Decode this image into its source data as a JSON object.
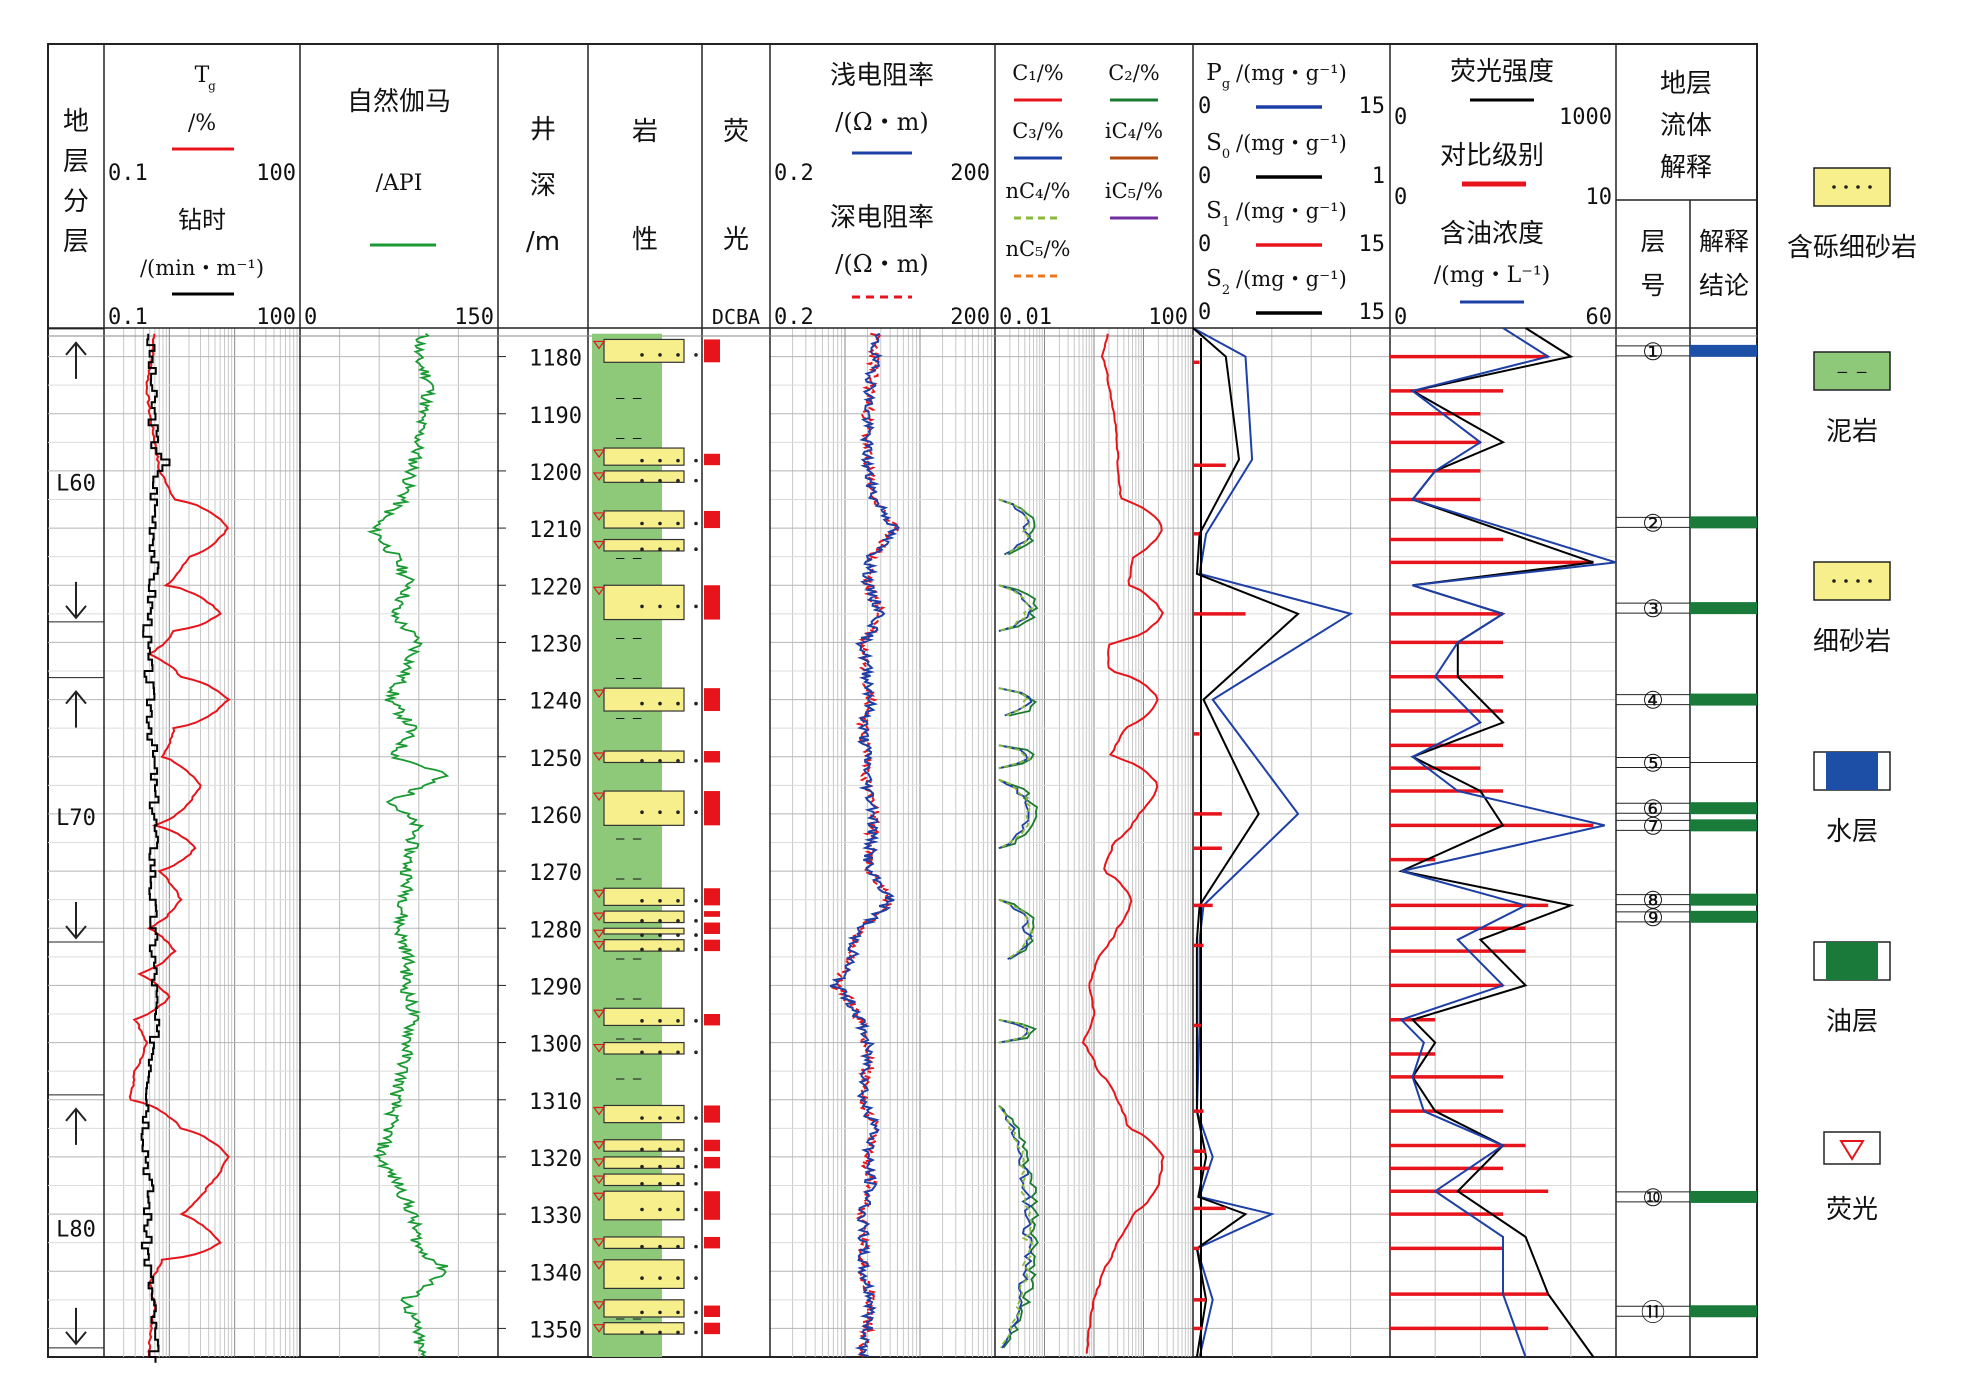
{
  "chart_data": {
    "type": "line",
    "depth_axis": {
      "label": "井深/m",
      "range": [
        1175,
        1355
      ],
      "ticks": [
        1180,
        1190,
        1200,
        1210,
        1220,
        1230,
        1240,
        1250,
        1260,
        1270,
        1280,
        1290,
        1300,
        1310,
        1320,
        1330,
        1340,
        1350
      ]
    },
    "strata": {
      "header": "地层分层",
      "zones": [
        {
          "name": "L60",
          "top": 1179,
          "bottom": 1225
        },
        {
          "name": "L70",
          "top": 1240,
          "bottom": 1281
        },
        {
          "name": "L80",
          "top": 1313,
          "bottom": 1352
        }
      ]
    },
    "tracks": {
      "tg": {
        "label_T": "T",
        "label_sub": "g",
        "unit": "/%",
        "min": "0.1",
        "max": "100",
        "color": "#e8141b",
        "depth": [
          1175,
          1180,
          1185,
          1190,
          1195,
          1200,
          1205,
          1210,
          1215,
          1220,
          1225,
          1228,
          1232,
          1236,
          1240,
          1245,
          1250,
          1255,
          1258,
          1262,
          1266,
          1270,
          1275,
          1280,
          1284,
          1288,
          1292,
          1296,
          1300,
          1305,
          1310,
          1315,
          1320,
          1325,
          1330,
          1335,
          1338,
          1342,
          1346,
          1352,
          1355
        ],
        "value": [
          0.6,
          0.55,
          0.45,
          0.5,
          0.6,
          0.7,
          1.2,
          8,
          2,
          0.9,
          6,
          1.2,
          0.5,
          1.5,
          8,
          1.2,
          0.8,
          3,
          2,
          0.6,
          2.5,
          0.7,
          1.5,
          0.5,
          1.2,
          0.35,
          1,
          0.3,
          0.45,
          0.3,
          0.25,
          1.5,
          8,
          4,
          1.5,
          6,
          0.8,
          0.5,
          0.6,
          0.5,
          0.5
        ]
      },
      "drill_time": {
        "label": "钻时",
        "unit": "/(min・m⁻¹)",
        "min": "0.1",
        "max": "100",
        "color": "#000000",
        "depth": [
          1175,
          1185,
          1195,
          1198,
          1200,
          1215,
          1230,
          1245,
          1260,
          1275,
          1290,
          1300,
          1315,
          1325,
          1335,
          1345,
          1355
        ],
        "value": [
          0.5,
          0.55,
          0.6,
          0.9,
          0.6,
          0.6,
          0.45,
          0.55,
          0.6,
          0.55,
          0.6,
          0.6,
          0.45,
          0.5,
          0.45,
          0.55,
          0.6
        ]
      },
      "gr": {
        "label": "自然伽马",
        "unit": "/API",
        "min": "0",
        "max": "150",
        "color": "#1a9a33",
        "depth": [
          1175,
          1180,
          1185,
          1190,
          1195,
          1200,
          1205,
          1210,
          1215,
          1220,
          1225,
          1230,
          1235,
          1240,
          1245,
          1250,
          1253,
          1258,
          1262,
          1268,
          1275,
          1280,
          1285,
          1290,
          1295,
          1300,
          1305,
          1310,
          1315,
          1320,
          1325,
          1330,
          1336,
          1340,
          1345,
          1350,
          1355
        ],
        "value": [
          95,
          88,
          100,
          92,
          90,
          85,
          78,
          55,
          72,
          84,
          70,
          90,
          80,
          68,
          85,
          72,
          110,
          70,
          88,
          82,
          80,
          75,
          82,
          80,
          86,
          82,
          78,
          72,
          68,
          60,
          75,
          85,
          90,
          112,
          80,
          88,
          92
        ]
      },
      "resistivity": {
        "shallow_label": "浅电阻率",
        "deep_label": "深电阻率",
        "unit": "/(Ω・m)",
        "min": "0.2",
        "max": "200",
        "shallow_color": "#1d3fa6",
        "deep_color": "#e8141b",
        "depth": [
          1175,
          1180,
          1185,
          1190,
          1195,
          1200,
          1205,
          1210,
          1215,
          1220,
          1225,
          1230,
          1235,
          1240,
          1245,
          1250,
          1255,
          1260,
          1265,
          1270,
          1275,
          1280,
          1285,
          1290,
          1295,
          1300,
          1305,
          1310,
          1315,
          1320,
          1325,
          1330,
          1335,
          1340,
          1345,
          1350,
          1355
        ],
        "value": [
          5,
          5,
          4.5,
          4,
          4,
          4,
          5,
          9,
          4.5,
          4,
          6,
          3.5,
          4,
          4.5,
          3.5,
          4,
          4,
          5,
          4.5,
          4,
          8,
          3,
          2.5,
          1.5,
          3,
          4,
          4,
          3.5,
          5,
          4,
          4.5,
          3.5,
          3.5,
          3.5,
          4.5,
          4,
          3.5
        ]
      },
      "gas": {
        "labels": [
          "C₁/%",
          "C₂/%",
          "C₃/%",
          "iC₄/%",
          "nC₄/%",
          "iC₅/%",
          "nC₅/%"
        ],
        "min": "0.01",
        "max": "100",
        "colors": [
          "#e8141b",
          "#1a7a30",
          "#1d3fa6",
          "#b04a10",
          "#8ab83a",
          "#7030a0",
          "#e87820"
        ],
        "c1_depth": [
          1175,
          1180,
          1185,
          1190,
          1195,
          1200,
          1205,
          1210,
          1215,
          1220,
          1225,
          1230,
          1235,
          1240,
          1245,
          1250,
          1255,
          1260,
          1265,
          1270,
          1275,
          1280,
          1285,
          1290,
          1295,
          1300,
          1305,
          1310,
          1315,
          1320,
          1325,
          1330,
          1335,
          1340,
          1345,
          1350,
          1355
        ],
        "c1_value": [
          2,
          1.5,
          2,
          2.5,
          3,
          3,
          3.5,
          25,
          6,
          5,
          25,
          2,
          2,
          20,
          4,
          2,
          20,
          8,
          2.5,
          1.5,
          6,
          3,
          1.2,
          0.8,
          1,
          0.6,
          1.2,
          3,
          5,
          25,
          20,
          6,
          3,
          1.5,
          1,
          0.8,
          0.7
        ]
      },
      "pyrolysis": {
        "pg_label": "P",
        "pg_sub": "g",
        "so_label": "S",
        "so_sub": "0",
        "s1_label": "S",
        "s1_sub": "1",
        "s2_label": "S",
        "s2_sub": "2",
        "unit": "/(mg・g⁻¹)",
        "pg_range": [
          "0",
          "15"
        ],
        "s0_range": [
          "0",
          "1"
        ],
        "s1_range": [
          "0",
          "15"
        ],
        "s2_range": [
          "0",
          "15"
        ],
        "pg_color": "#1d3fa6",
        "s0_color": "#000000",
        "s1_color": "#e8141b",
        "s2_color": "#000000",
        "depth": [
          1175,
          1180,
          1198,
          1211,
          1218,
          1225,
          1240,
          1260,
          1276,
          1282,
          1297,
          1312,
          1320,
          1327,
          1330,
          1336,
          1345,
          1355
        ],
        "pg": [
          0,
          4,
          4.5,
          1,
          0.5,
          12,
          1.5,
          8,
          0.8,
          0.5,
          0.5,
          0.3,
          1.5,
          0.5,
          6,
          0.3,
          1.5,
          0.5
        ],
        "s2": [
          0,
          2.5,
          3.5,
          0.5,
          0.3,
          8,
          0.8,
          5,
          0.5,
          0.3,
          0.3,
          0.3,
          1,
          0.4,
          4,
          0.3,
          1,
          0.3
        ]
      },
      "fluorescence": {
        "intensity_label": "荧光强度",
        "intensity_range": [
          "0",
          "1000"
        ],
        "level_label": "对比级别",
        "level_range": [
          "0",
          "10"
        ],
        "oil_label": "含油浓度",
        "oil_unit": "/(mg・L⁻¹)",
        "oil_range": [
          "0",
          "60"
        ],
        "intensity_color": "#000000",
        "level_color": "#e8141b",
        "oil_color": "#1d3fa6",
        "depth": [
          1175,
          1180,
          1186,
          1195,
          1200,
          1205,
          1216,
          1220,
          1225,
          1230,
          1236,
          1244,
          1250,
          1256,
          1262,
          1270,
          1276,
          1282,
          1290,
          1296,
          1300,
          1306,
          1312,
          1318,
          1326,
          1334,
          1344,
          1355
        ],
        "intensity": [
          0.6,
          0.8,
          0.1,
          0.5,
          0.2,
          0.1,
          0.9,
          0.1,
          0.5,
          0.3,
          0.3,
          0.5,
          0.1,
          0.4,
          0.5,
          0.05,
          0.8,
          0.4,
          0.6,
          0.1,
          0.2,
          0.1,
          0.2,
          0.5,
          0.3,
          0.6,
          0.7,
          0.9
        ],
        "oil": [
          0.5,
          0.7,
          0.1,
          0.4,
          0.2,
          0.1,
          1.0,
          0.1,
          0.5,
          0.3,
          0.2,
          0.4,
          0.1,
          0.3,
          0.95,
          0.05,
          0.6,
          0.3,
          0.5,
          0.05,
          0.15,
          0.1,
          0.15,
          0.5,
          0.2,
          0.5,
          0.5,
          0.6
        ],
        "level_depth": [
          1180,
          1186,
          1190,
          1195,
          1200,
          1205,
          1212,
          1216,
          1225,
          1230,
          1236,
          1242,
          1248,
          1252,
          1256,
          1262,
          1268,
          1276,
          1280,
          1284,
          1290,
          1296,
          1302,
          1306,
          1312,
          1318,
          1322,
          1326,
          1330,
          1336,
          1344,
          1350
        ],
        "level": [
          7,
          5,
          4,
          4,
          4,
          4,
          5,
          9,
          5,
          5,
          5,
          5,
          5,
          4,
          5,
          9,
          2,
          7,
          6,
          6,
          5,
          2,
          2,
          5,
          5,
          6,
          5,
          7,
          5,
          5,
          7,
          7
        ]
      },
      "litho": {
        "header_1": "岩",
        "header_2": "性",
        "sand": [
          [
            1177,
            1181
          ],
          [
            1196,
            1199
          ],
          [
            1200,
            1202
          ],
          [
            1207,
            1210
          ],
          [
            1212,
            1214
          ],
          [
            1220,
            1226
          ],
          [
            1238,
            1242
          ],
          [
            1249,
            1251
          ],
          [
            1256,
            1262
          ],
          [
            1273,
            1276
          ],
          [
            1277,
            1279
          ],
          [
            1280,
            1281
          ],
          [
            1282,
            1284
          ],
          [
            1294,
            1297
          ],
          [
            1300,
            1302
          ],
          [
            1311,
            1314
          ],
          [
            1317,
            1319
          ],
          [
            1320,
            1322
          ],
          [
            1323,
            1325
          ],
          [
            1326,
            1331
          ],
          [
            1334,
            1336
          ],
          [
            1338,
            1343
          ],
          [
            1345,
            1348
          ],
          [
            1349,
            1351
          ]
        ]
      },
      "fluor_track": {
        "header_1": "荧",
        "header_2": "光",
        "scale": "DCBA",
        "bars": [
          [
            1177,
            1181
          ],
          [
            1197,
            1199
          ],
          [
            1207,
            1210
          ],
          [
            1220,
            1226
          ],
          [
            1238,
            1242
          ],
          [
            1249,
            1251
          ],
          [
            1256,
            1262
          ],
          [
            1273,
            1276
          ],
          [
            1277,
            1278
          ],
          [
            1279,
            1281
          ],
          [
            1282,
            1284
          ],
          [
            1295,
            1297
          ],
          [
            1311,
            1314
          ],
          [
            1317,
            1319
          ],
          [
            1320,
            1322
          ],
          [
            1326,
            1331
          ],
          [
            1334,
            1336
          ],
          [
            1346,
            1348
          ],
          [
            1349,
            1351
          ]
        ]
      },
      "interpretation": {
        "header": "地层流体解释",
        "col1": "层号",
        "col2": "解释结论",
        "layers": [
          {
            "id": "①",
            "depth": 1179,
            "type": "water"
          },
          {
            "id": "②",
            "depth": 1209,
            "type": "oil"
          },
          {
            "id": "③",
            "depth": 1224,
            "type": "oil"
          },
          {
            "id": "④",
            "depth": 1240,
            "type": "oil"
          },
          {
            "id": "⑤",
            "depth": 1251,
            "type": "none"
          },
          {
            "id": "⑥",
            "depth": 1259,
            "type": "oil"
          },
          {
            "id": "⑦",
            "depth": 1262,
            "type": "oil"
          },
          {
            "id": "⑧",
            "depth": 1275,
            "type": "oil"
          },
          {
            "id": "⑨",
            "depth": 1278,
            "type": "oil"
          },
          {
            "id": "⑩",
            "depth": 1327,
            "type": "oil"
          },
          {
            "id": "⑪",
            "depth": 1347,
            "type": "oil"
          }
        ]
      }
    },
    "legend": [
      {
        "label": "含砾细砂岩",
        "kind": "gravel-sand"
      },
      {
        "label": "泥岩",
        "kind": "mudstone"
      },
      {
        "label": "细砂岩",
        "kind": "fine-sand"
      },
      {
        "label": "水层",
        "kind": "water"
      },
      {
        "label": "油层",
        "kind": "oil"
      },
      {
        "label": "荧光",
        "kind": "fluorescence"
      }
    ],
    "colors": {
      "sand": "#f6ef8c",
      "mud": "#8ec97a",
      "water": "#1d4fa6",
      "oil": "#1a7a3a",
      "fluor": "#e8141b"
    }
  }
}
